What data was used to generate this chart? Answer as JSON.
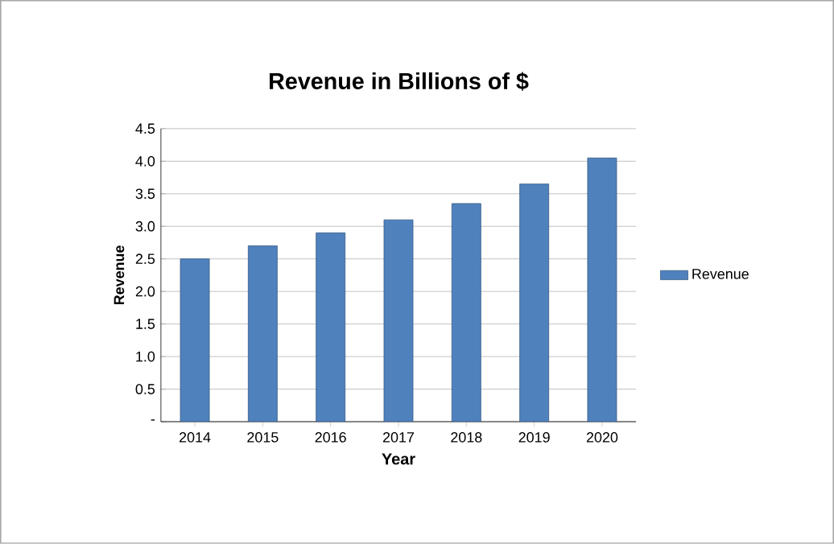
{
  "chart_data": {
    "type": "bar",
    "title": "Revenue in Billions of $",
    "xlabel": "Year",
    "ylabel": "Revenue",
    "categories": [
      "2014",
      "2015",
      "2016",
      "2017",
      "2018",
      "2019",
      "2020"
    ],
    "series": [
      {
        "name": "Revenue",
        "color": "#4f81bd",
        "values": [
          2.5,
          2.7,
          2.9,
          3.1,
          3.35,
          3.65,
          4.05
        ]
      }
    ],
    "ylim": [
      0,
      4.5
    ],
    "yticks": [
      {
        "value": 0,
        "label": "-"
      },
      0.5,
      {
        "value": 1,
        "label": "1.0"
      },
      1.5,
      {
        "value": 2,
        "label": "2.0"
      },
      2.5,
      {
        "value": 3,
        "label": "3.0"
      },
      3.5,
      {
        "value": 4,
        "label": "4.0"
      },
      4.5
    ],
    "grid": "y",
    "legend": "right"
  }
}
